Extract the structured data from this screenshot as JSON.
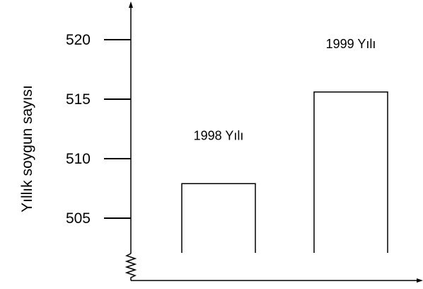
{
  "chart_data": {
    "type": "bar",
    "title": "",
    "xlabel": "",
    "ylabel": "Yıllık soygun sayısı",
    "categories": [
      "1998 Yılı",
      "1999 Yılı"
    ],
    "values": [
      507.9,
      515.6
    ],
    "yticks": [
      "505",
      "510",
      "515",
      "520"
    ],
    "ylim": [
      502,
      523
    ],
    "axis_break": true,
    "grid": false,
    "legend": "none",
    "bar_fill": "#ffffff",
    "bar_stroke": "#000000",
    "colors": {
      "axis": "#000000",
      "text": "#000000",
      "background": "#ffffff"
    }
  }
}
